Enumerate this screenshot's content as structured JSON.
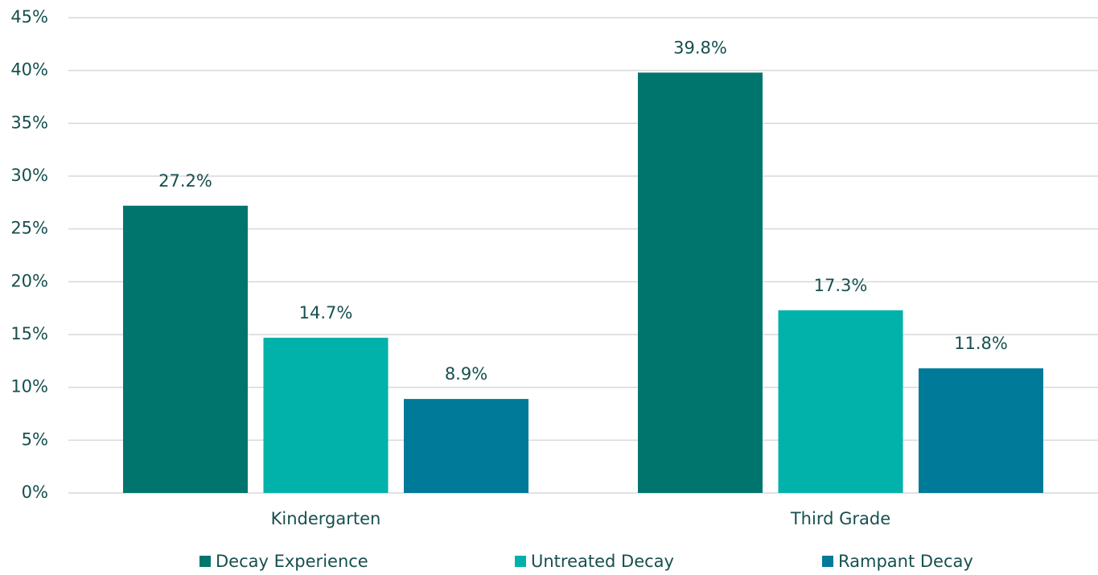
{
  "chart_data": {
    "type": "bar",
    "categories": [
      "Kindergarten",
      "Third Grade"
    ],
    "series": [
      {
        "name": "Decay Experience",
        "color": "#00756e",
        "values": [
          27.2,
          39.8
        ],
        "value_labels": [
          "27.2%",
          "39.8%"
        ]
      },
      {
        "name": "Untreated Decay",
        "color": "#00b2a9",
        "values": [
          14.7,
          17.3
        ],
        "value_labels": [
          "14.7%",
          "17.3%"
        ]
      },
      {
        "name": "Rampant Decay",
        "color": "#007a99",
        "values": [
          8.9,
          11.8
        ],
        "value_labels": [
          "8.9%",
          "11.8%"
        ]
      }
    ],
    "ylim": [
      0,
      45
    ],
    "yticks": [
      {
        "value": 0,
        "label": "0%"
      },
      {
        "value": 5,
        "label": "5%"
      },
      {
        "value": 10,
        "label": "10%"
      },
      {
        "value": 15,
        "label": "15%"
      },
      {
        "value": 20,
        "label": "20%"
      },
      {
        "value": 25,
        "label": "25%"
      },
      {
        "value": 30,
        "label": "30%"
      },
      {
        "value": 35,
        "label": "35%"
      },
      {
        "value": 40,
        "label": "40%"
      },
      {
        "value": 45,
        "label": "45%"
      }
    ],
    "grid": true,
    "legend": "bottom"
  }
}
